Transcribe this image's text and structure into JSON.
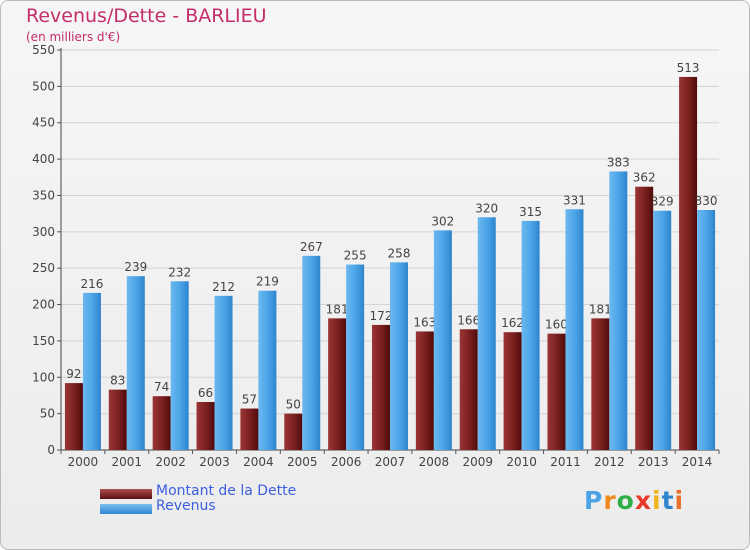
{
  "title": "Revenus/Dette - BARLIEU",
  "subtitle": "(en milliers d'€)",
  "logo_text": "Proxiti",
  "colors": {
    "title": "#c42d6a",
    "dette": "#7a1f1f",
    "revenus": "#4aa3e6",
    "legend_text": "#3d5ee0",
    "grid": "#d4d4d4"
  },
  "legend": {
    "items": [
      {
        "label": "Montant de la Dette",
        "color": "#7a1f1f"
      },
      {
        "label": "Revenus",
        "color": "#4aa3e6"
      }
    ]
  },
  "chart_data": {
    "type": "bar",
    "title": "Revenus/Dette - BARLIEU",
    "ylabel": "",
    "xlabel": "",
    "ylim": [
      0,
      550
    ],
    "yticks": [
      0,
      50,
      100,
      150,
      200,
      250,
      300,
      350,
      400,
      450,
      500,
      550
    ],
    "grid": true,
    "legend_position": "bottom-left",
    "categories": [
      "2000",
      "2001",
      "2002",
      "2003",
      "2004",
      "2005",
      "2006",
      "2007",
      "2008",
      "2009",
      "2010",
      "2011",
      "2012",
      "2013",
      "2014"
    ],
    "series": [
      {
        "name": "Montant de la Dette",
        "color": "#7a1f1f",
        "values": [
          92,
          83,
          74,
          66,
          57,
          50,
          181,
          172,
          163,
          166,
          162,
          160,
          181,
          362,
          513
        ]
      },
      {
        "name": "Revenus",
        "color": "#4aa3e6",
        "values": [
          216,
          239,
          232,
          212,
          219,
          267,
          255,
          258,
          302,
          320,
          315,
          331,
          383,
          329,
          330
        ]
      }
    ]
  }
}
